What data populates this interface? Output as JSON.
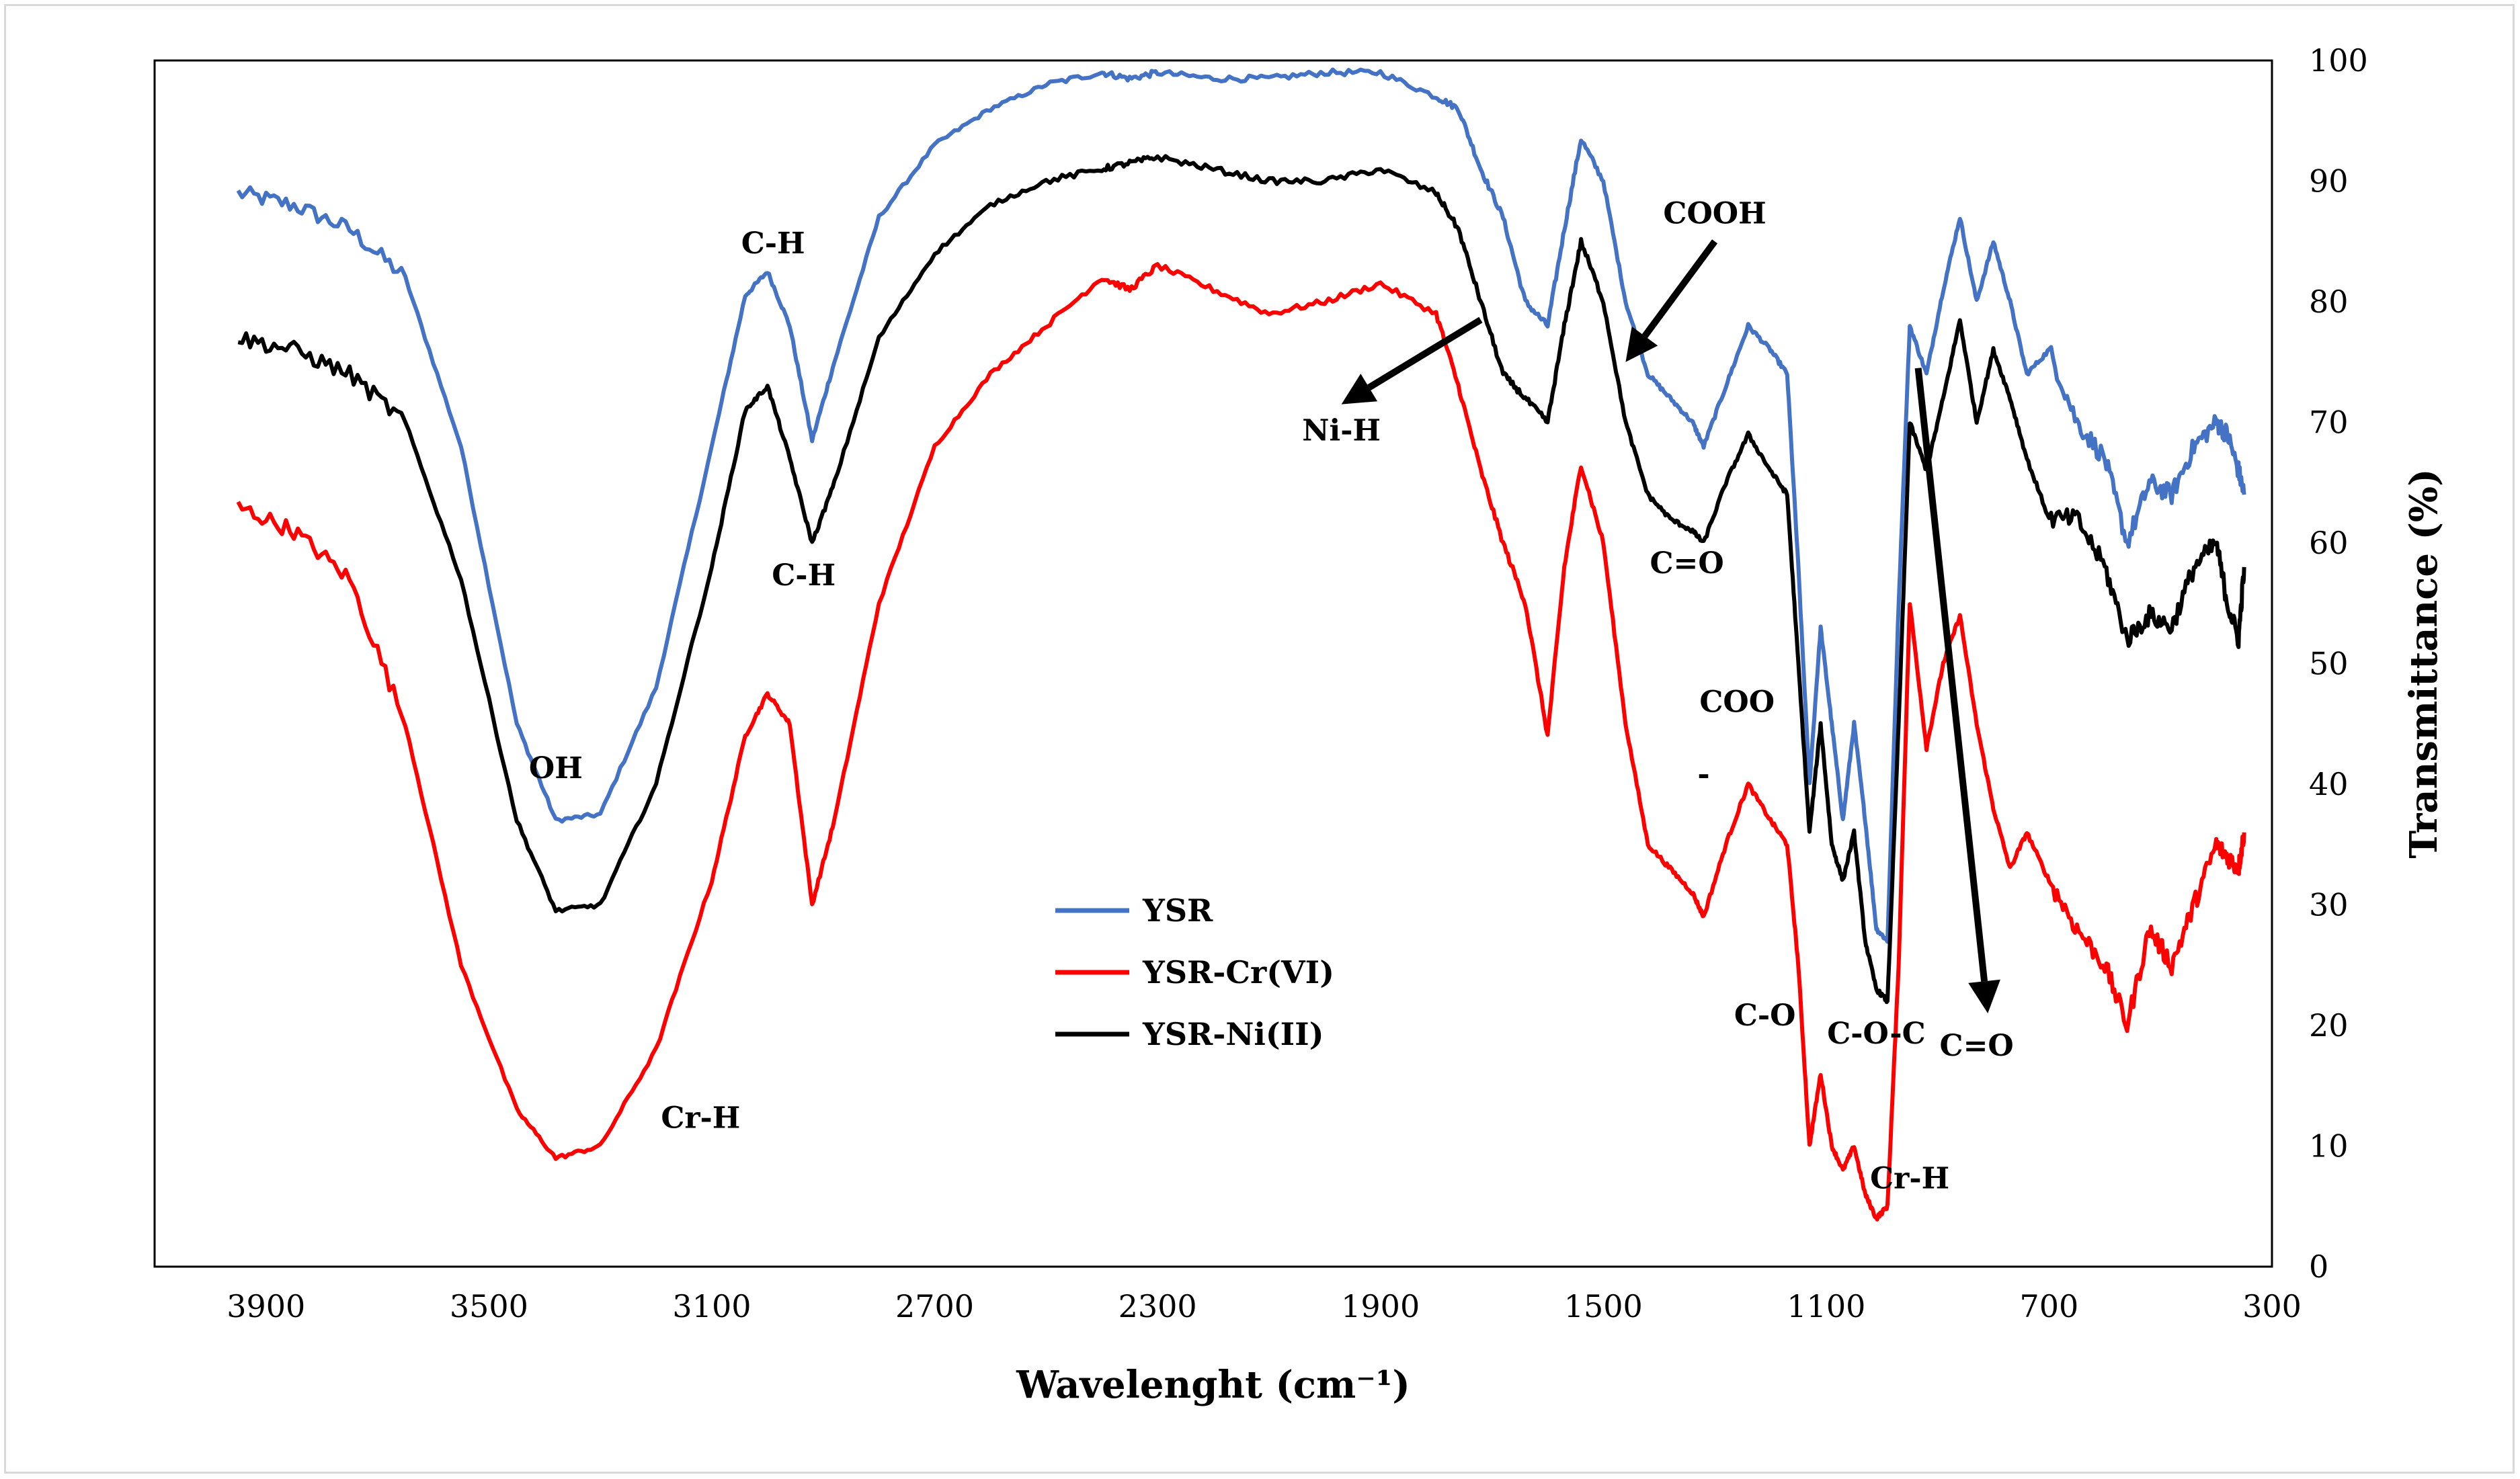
{
  "chart_data": {
    "type": "line",
    "title": "",
    "xlabel": "Wavelenght (cm⁻¹)",
    "ylabel": "Transmittance (%)",
    "xlim": [
      4100,
      300
    ],
    "ylim": [
      0,
      100
    ],
    "x_ticks": [
      3900,
      3500,
      3100,
      2700,
      2300,
      1900,
      1500,
      1100,
      700,
      300
    ],
    "y_ticks": [
      0,
      10,
      20,
      30,
      40,
      50,
      60,
      70,
      80,
      90,
      100
    ],
    "legend_position": "center",
    "series": [
      {
        "name": "YSR",
        "color": "#4472c4",
        "x": [
          3950,
          3850,
          3750,
          3650,
          3550,
          3450,
          3380,
          3300,
          3200,
          3100,
          3040,
          3000,
          2960,
          2920,
          2880,
          2800,
          2700,
          2600,
          2500,
          2400,
          2350,
          2300,
          2200,
          2100,
          2000,
          1900,
          1800,
          1760,
          1720,
          1680,
          1640,
          1600,
          1570,
          1540,
          1500,
          1460,
          1420,
          1380,
          1340,
          1320,
          1280,
          1240,
          1200,
          1170,
          1150,
          1130,
          1110,
          1090,
          1070,
          1050,
          1030,
          1010,
          990,
          970,
          950,
          920,
          890,
          860,
          830,
          800,
          770,
          740,
          700,
          650,
          600,
          560,
          520,
          480,
          440,
          400,
          380,
          360,
          350
        ],
        "y": [
          89,
          88,
          86,
          82,
          68,
          45,
          37,
          37.5,
          48,
          68,
          80.5,
          82.5,
          78,
          68.5,
          75,
          87,
          93,
          96,
          98,
          99,
          98.5,
          99,
          98.5,
          98.5,
          99,
          99,
          97,
          96,
          91,
          87,
          80,
          78,
          86,
          93.5,
          90,
          80,
          74,
          72,
          70,
          68,
          73,
          78,
          76,
          74,
          58,
          40,
          53,
          45,
          37,
          45,
          37,
          28,
          27,
          55,
          78,
          74,
          81,
          87,
          80,
          85,
          80,
          74,
          76,
          70,
          67,
          60,
          65,
          64,
          68,
          70,
          69,
          66,
          64
        ]
      },
      {
        "name": "YSR-Cr(VI)",
        "color": "#ff0000",
        "x": [
          3950,
          3850,
          3750,
          3650,
          3550,
          3450,
          3380,
          3300,
          3200,
          3100,
          3040,
          3000,
          2960,
          2920,
          2880,
          2800,
          2700,
          2600,
          2500,
          2400,
          2350,
          2300,
          2200,
          2100,
          2000,
          1900,
          1800,
          1760,
          1720,
          1680,
          1640,
          1600,
          1570,
          1540,
          1500,
          1460,
          1420,
          1380,
          1340,
          1320,
          1280,
          1240,
          1200,
          1170,
          1150,
          1130,
          1110,
          1090,
          1070,
          1050,
          1030,
          1010,
          990,
          970,
          950,
          920,
          890,
          860,
          830,
          800,
          770,
          740,
          700,
          650,
          600,
          560,
          520,
          480,
          440,
          400,
          380,
          360,
          350
        ],
        "y": [
          63,
          61,
          57,
          45,
          25,
          13,
          9,
          10,
          18,
          32,
          44,
          47.5,
          45,
          30,
          37,
          55,
          68,
          74,
          78,
          82,
          81,
          83,
          81,
          79,
          80,
          81.5,
          79,
          73,
          66,
          60,
          55,
          44,
          58,
          66.5,
          60,
          45,
          35,
          33,
          31,
          29,
          35,
          40,
          37,
          35,
          25,
          10,
          16,
          10,
          8,
          10,
          6,
          4,
          5,
          25,
          55,
          43,
          50,
          54,
          45,
          38,
          33,
          36,
          32,
          28,
          25,
          20,
          28,
          25,
          30,
          35,
          34,
          33,
          36
        ]
      },
      {
        "name": "YSR-Ni(II)",
        "color": "#000000",
        "x": [
          3950,
          3850,
          3750,
          3650,
          3550,
          3450,
          3380,
          3300,
          3200,
          3100,
          3040,
          3000,
          2960,
          2920,
          2880,
          2800,
          2700,
          2600,
          2500,
          2400,
          2350,
          2300,
          2200,
          2100,
          2000,
          1900,
          1800,
          1760,
          1720,
          1680,
          1640,
          1600,
          1570,
          1540,
          1500,
          1460,
          1420,
          1380,
          1340,
          1320,
          1280,
          1240,
          1200,
          1170,
          1150,
          1130,
          1110,
          1090,
          1070,
          1050,
          1030,
          1010,
          990,
          970,
          950,
          920,
          890,
          860,
          830,
          800,
          770,
          740,
          700,
          650,
          600,
          560,
          520,
          480,
          440,
          400,
          380,
          360,
          350
        ],
        "y": [
          77,
          76,
          74,
          70,
          57,
          37,
          29.5,
          30,
          40,
          58,
          71,
          73,
          67,
          60,
          65,
          77,
          84,
          88,
          90,
          91,
          91.5,
          92,
          91,
          90,
          90,
          91,
          89,
          86,
          80,
          74,
          72,
          70,
          78,
          85,
          80,
          70,
          64,
          62,
          61,
          60,
          65,
          69,
          66,
          64,
          50,
          36,
          45,
          35,
          32,
          36,
          27,
          23,
          22,
          45,
          70,
          66,
          72,
          78.5,
          70,
          76,
          72,
          67,
          62,
          62,
          58,
          52,
          54,
          53,
          58,
          60,
          55,
          52,
          58
        ]
      }
    ],
    "annotations": [
      {
        "text": "OH",
        "x": 3380,
        "y": 40.5
      },
      {
        "text": "C-H",
        "x": 2990,
        "y": 84
      },
      {
        "text": "C-H",
        "x": 2935,
        "y": 56.5
      },
      {
        "text": "Cr-H",
        "x": 3120,
        "y": 11.5
      },
      {
        "text": "Ni-H",
        "x": 1970,
        "y": 68.5
      },
      {
        "text": "COOH",
        "x": 1300,
        "y": 86.5
      },
      {
        "text": "C=O",
        "x": 1350,
        "y": 57.5
      },
      {
        "text": "COO",
        "x": 1260,
        "y": 46
      },
      {
        "text": "-",
        "x": 1320,
        "y": 40
      },
      {
        "text": "C-O",
        "x": 1210,
        "y": 20
      },
      {
        "text": "C-O-C",
        "x": 1010,
        "y": 18.5
      },
      {
        "text": "C=O",
        "x": 830,
        "y": 17.5
      },
      {
        "text": "Cr-H",
        "x": 950,
        "y": 6.5
      }
    ],
    "arrows": [
      {
        "from": [
          1720,
          78.5
        ],
        "to": [
          1970,
          71.5
        ]
      },
      {
        "from": [
          1300,
          85
        ],
        "to": [
          1460,
          75
        ]
      },
      {
        "from": [
          935,
          74.5
        ],
        "to": [
          810,
          21
        ]
      }
    ]
  }
}
